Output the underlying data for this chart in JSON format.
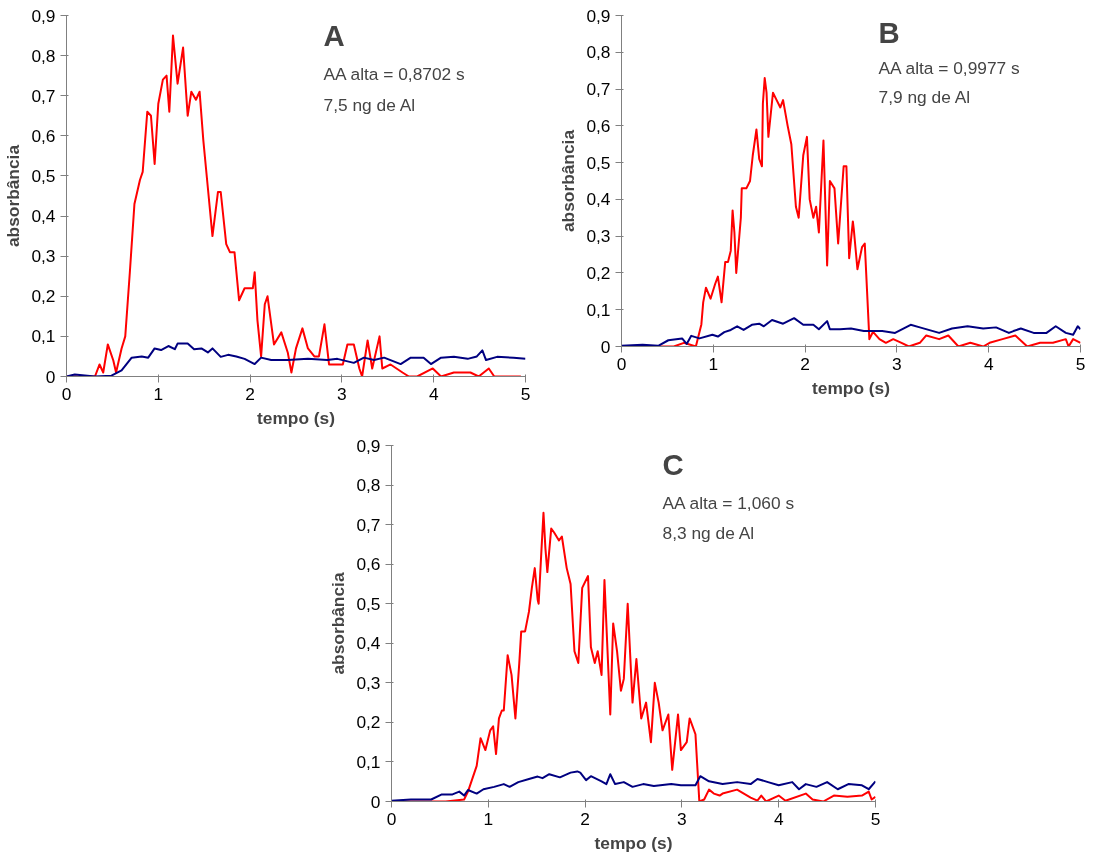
{
  "chart_data": [
    {
      "type": "line",
      "title": "A",
      "annotations": [
        "AA alta = 0,8702 s",
        "7,5 ng de Al"
      ],
      "xlabel": "tempo (s)",
      "ylabel": "absorbância",
      "xlim": [
        0,
        5
      ],
      "xticks": [
        0,
        1,
        2,
        3,
        4,
        5
      ],
      "ylim": [
        0,
        0.9
      ],
      "yticks": [
        {
          "value": 0,
          "label": "0"
        },
        {
          "value": 0.1,
          "label": "0,1"
        },
        {
          "value": 0.2,
          "label": "0,2"
        },
        {
          "value": 0.3,
          "label": "0,3"
        },
        {
          "value": 0.4,
          "label": "0,4"
        },
        {
          "value": 0.5,
          "label": "0,5"
        },
        {
          "value": 0.6,
          "label": "0,6"
        },
        {
          "value": 0.7,
          "label": "0,7"
        },
        {
          "value": 0.8,
          "label": "0,8"
        },
        {
          "value": 0.9,
          "label": "0,9"
        }
      ],
      "grid": false,
      "marker": "none",
      "line_style": "solid",
      "series": [
        {
          "color": "#ff0000",
          "x": [
            0,
            0.31,
            0.36,
            0.4,
            0.45,
            0.51,
            0.54,
            0.6,
            0.64,
            0.69,
            0.74,
            0.8,
            0.83,
            0.88,
            0.92,
            0.96,
            1.0,
            1.05,
            1.09,
            1.12,
            1.16,
            1.21,
            1.27,
            1.32,
            1.36,
            1.41,
            1.45,
            1.49,
            1.54,
            1.59,
            1.65,
            1.68,
            1.74,
            1.78,
            1.83,
            1.88,
            1.94,
            2.03,
            2.05,
            2.08,
            2.12,
            2.16,
            2.19,
            2.26,
            2.34,
            2.41,
            2.45,
            2.5,
            2.57,
            2.63,
            2.7,
            2.75,
            2.81,
            2.86,
            2.95,
            3.01,
            3.06,
            3.13,
            3.19,
            3.22,
            3.28,
            3.33,
            3.41,
            3.44,
            3.53,
            3.66,
            3.73,
            3.82,
            3.99,
            4.08,
            4.22,
            4.4,
            4.49,
            4.6,
            4.66,
            4.8,
            4.95
          ],
          "values": [
            0,
            0,
            0.03,
            0.01,
            0.08,
            0.04,
            0.01,
            0.07,
            0.1,
            0.26,
            0.43,
            0.49,
            0.51,
            0.66,
            0.65,
            0.53,
            0.68,
            0.74,
            0.75,
            0.66,
            0.85,
            0.73,
            0.82,
            0.65,
            0.71,
            0.69,
            0.71,
            0.59,
            0.47,
            0.35,
            0.46,
            0.46,
            0.33,
            0.31,
            0.31,
            0.19,
            0.22,
            0.22,
            0.26,
            0.14,
            0.05,
            0.18,
            0.2,
            0.08,
            0.11,
            0.06,
            0.01,
            0.07,
            0.12,
            0.07,
            0.05,
            0.05,
            0.13,
            0.03,
            0.03,
            0.03,
            0.08,
            0.08,
            0.02,
            0,
            0.09,
            0.02,
            0.1,
            0.02,
            0.03,
            0.01,
            0,
            0,
            0.02,
            0,
            0.01,
            0.01,
            0,
            0.02,
            0,
            0,
            0
          ]
        },
        {
          "color": "#000080",
          "x": [
            0,
            0.09,
            0.31,
            0.49,
            0.6,
            0.71,
            0.82,
            0.89,
            0.96,
            1.03,
            1.11,
            1.18,
            1.21,
            1.32,
            1.39,
            1.47,
            1.54,
            1.59,
            1.68,
            1.76,
            1.85,
            1.94,
            2.05,
            2.12,
            2.23,
            2.41,
            2.63,
            2.84,
            2.95,
            3.13,
            3.24,
            3.35,
            3.46,
            3.64,
            3.75,
            3.89,
            3.97,
            4.08,
            4.22,
            4.37,
            4.47,
            4.53,
            4.57,
            4.69,
            4.87,
            5.0
          ],
          "values": [
            0,
            0.005,
            0,
            0.002,
            0.015,
            0.047,
            0.05,
            0.047,
            0.07,
            0.066,
            0.076,
            0.068,
            0.082,
            0.082,
            0.068,
            0.07,
            0.06,
            0.07,
            0.049,
            0.054,
            0.05,
            0.044,
            0.031,
            0.047,
            0.041,
            0.041,
            0.044,
            0.041,
            0.044,
            0.034,
            0.047,
            0.041,
            0.047,
            0.031,
            0.047,
            0.047,
            0.031,
            0.047,
            0.049,
            0.044,
            0.05,
            0.065,
            0.041,
            0.049,
            0.047,
            0.044
          ]
        }
      ]
    },
    {
      "type": "line",
      "title": "B",
      "annotations": [
        "AA alta = 0,9977 s",
        "7,9 ng de Al"
      ],
      "xlabel": "tempo (s)",
      "ylabel": "absorbância",
      "xlim": [
        0,
        5
      ],
      "xticks": [
        0,
        1,
        2,
        3,
        4,
        5
      ],
      "ylim": [
        0,
        0.9
      ],
      "yticks": [
        {
          "value": 0,
          "label": "0"
        },
        {
          "value": 0.1,
          "label": "0,1"
        },
        {
          "value": 0.2,
          "label": "0,2"
        },
        {
          "value": 0.3,
          "label": "0,3"
        },
        {
          "value": 0.4,
          "label": "0,4"
        },
        {
          "value": 0.5,
          "label": "0,5"
        },
        {
          "value": 0.6,
          "label": "0,6"
        },
        {
          "value": 0.7,
          "label": "0,7"
        },
        {
          "value": 0.8,
          "label": "0,8"
        },
        {
          "value": 0.9,
          "label": "0,9"
        }
      ],
      "grid": false,
      "marker": "none",
      "line_style": "solid",
      "series": [
        {
          "color": "#ff0000",
          "x": [
            0,
            0.57,
            0.68,
            0.81,
            0.87,
            0.89,
            0.92,
            0.97,
            1.02,
            1.05,
            1.09,
            1.13,
            1.16,
            1.19,
            1.21,
            1.23,
            1.25,
            1.3,
            1.31,
            1.36,
            1.4,
            1.43,
            1.47,
            1.5,
            1.53,
            1.54,
            1.56,
            1.58,
            1.6,
            1.65,
            1.69,
            1.73,
            1.76,
            1.81,
            1.85,
            1.9,
            1.93,
            1.98,
            2.02,
            2.05,
            2.09,
            2.12,
            2.15,
            2.2,
            2.24,
            2.27,
            2.32,
            2.36,
            2.42,
            2.45,
            2.48,
            2.52,
            2.53,
            2.57,
            2.62,
            2.65,
            2.7,
            2.74,
            2.81,
            2.88,
            2.96,
            3.05,
            3.13,
            3.25,
            3.32,
            3.46,
            3.56,
            3.67,
            3.8,
            3.94,
            4.01,
            4.15,
            4.29,
            4.42,
            4.56,
            4.7,
            4.84,
            4.87,
            4.92,
            5.0
          ],
          "values": [
            0,
            0,
            0.01,
            0,
            0.06,
            0.12,
            0.16,
            0.13,
            0.17,
            0.19,
            0.12,
            0.23,
            0.23,
            0.26,
            0.37,
            0.31,
            0.2,
            0.35,
            0.43,
            0.43,
            0.45,
            0.52,
            0.59,
            0.51,
            0.49,
            0.66,
            0.73,
            0.69,
            0.57,
            0.69,
            0.67,
            0.65,
            0.67,
            0.6,
            0.55,
            0.38,
            0.35,
            0.52,
            0.57,
            0.4,
            0.35,
            0.38,
            0.31,
            0.56,
            0.22,
            0.45,
            0.43,
            0.28,
            0.49,
            0.49,
            0.24,
            0.34,
            0.32,
            0.21,
            0.27,
            0.28,
            0.02,
            0.04,
            0.02,
            0.01,
            0.02,
            0.01,
            0,
            0.01,
            0.03,
            0.02,
            0.03,
            0,
            0.01,
            0,
            0.01,
            0.02,
            0.03,
            0,
            0.01,
            0.01,
            0.02,
            0,
            0.02,
            0.01
          ]
        },
        {
          "color": "#000080",
          "x": [
            0,
            0.23,
            0.4,
            0.51,
            0.66,
            0.71,
            0.76,
            0.85,
            0.99,
            1.05,
            1.12,
            1.19,
            1.26,
            1.33,
            1.42,
            1.5,
            1.55,
            1.64,
            1.76,
            1.88,
            1.98,
            2.09,
            2.15,
            2.24,
            2.27,
            2.38,
            2.5,
            2.64,
            2.74,
            2.84,
            2.98,
            3.15,
            3.25,
            3.46,
            3.6,
            3.77,
            3.94,
            4.08,
            4.22,
            4.27,
            4.35,
            4.49,
            4.63,
            4.73,
            4.84,
            4.92,
            4.97,
            5.0
          ],
          "values": [
            0.002,
            0.005,
            0.002,
            0.017,
            0.022,
            0.007,
            0.029,
            0.022,
            0.032,
            0.027,
            0.039,
            0.045,
            0.055,
            0.045,
            0.059,
            0.062,
            0.055,
            0.072,
            0.062,
            0.077,
            0.059,
            0.059,
            0.047,
            0.069,
            0.047,
            0.047,
            0.049,
            0.042,
            0.042,
            0.042,
            0.037,
            0.059,
            0.052,
            0.037,
            0.049,
            0.055,
            0.049,
            0.052,
            0.037,
            0.042,
            0.049,
            0.037,
            0.037,
            0.055,
            0.037,
            0.032,
            0.055,
            0.047
          ]
        }
      ]
    },
    {
      "type": "line",
      "title": "C",
      "annotations": [
        "AA alta = 1,060 s",
        "8,3 ng de Al"
      ],
      "xlabel": "tempo (s)",
      "ylabel": "absorbância",
      "xlim": [
        0,
        5
      ],
      "xticks": [
        0,
        1,
        2,
        3,
        4,
        5
      ],
      "ylim": [
        0,
        0.9
      ],
      "yticks": [
        {
          "value": 0,
          "label": "0"
        },
        {
          "value": 0.1,
          "label": "0,1"
        },
        {
          "value": 0.2,
          "label": "0,2"
        },
        {
          "value": 0.3,
          "label": "0,3"
        },
        {
          "value": 0.4,
          "label": "0,4"
        },
        {
          "value": 0.5,
          "label": "0,5"
        },
        {
          "value": 0.6,
          "label": "0,6"
        },
        {
          "value": 0.7,
          "label": "0,7"
        },
        {
          "value": 0.8,
          "label": "0,8"
        },
        {
          "value": 0.9,
          "label": "0,9"
        }
      ],
      "grid": false,
      "marker": "none",
      "line_style": "solid",
      "series": [
        {
          "color": "#ff0000",
          "x": [
            0,
            0.56,
            0.75,
            0.79,
            0.88,
            0.92,
            0.97,
            1.02,
            1.05,
            1.08,
            1.11,
            1.14,
            1.16,
            1.2,
            1.24,
            1.28,
            1.32,
            1.34,
            1.38,
            1.42,
            1.45,
            1.48,
            1.51,
            1.52,
            1.55,
            1.57,
            1.59,
            1.61,
            1.65,
            1.68,
            1.73,
            1.76,
            1.81,
            1.85,
            1.89,
            1.93,
            1.97,
            2.03,
            2.06,
            2.1,
            2.13,
            2.17,
            2.2,
            2.26,
            2.29,
            2.33,
            2.37,
            2.4,
            2.44,
            2.49,
            2.53,
            2.58,
            2.63,
            2.68,
            2.72,
            2.76,
            2.8,
            2.86,
            2.9,
            2.96,
            2.99,
            3.05,
            3.08,
            3.14,
            3.18,
            3.23,
            3.28,
            3.33,
            3.39,
            3.42,
            3.57,
            3.71,
            3.78,
            3.82,
            3.87,
            4.0,
            4.07,
            4.28,
            4.35,
            4.46,
            4.57,
            4.71,
            4.86,
            4.93,
            4.96,
            5.0
          ],
          "values": [
            0,
            0,
            0.005,
            0.025,
            0.09,
            0.16,
            0.13,
            0.18,
            0.19,
            0.12,
            0.21,
            0.23,
            0.23,
            0.37,
            0.32,
            0.21,
            0.35,
            0.43,
            0.43,
            0.48,
            0.54,
            0.59,
            0.51,
            0.5,
            0.64,
            0.73,
            0.64,
            0.58,
            0.69,
            0.68,
            0.66,
            0.67,
            0.59,
            0.55,
            0.38,
            0.35,
            0.54,
            0.57,
            0.39,
            0.35,
            0.38,
            0.32,
            0.56,
            0.22,
            0.45,
            0.38,
            0.28,
            0.31,
            0.5,
            0.25,
            0.36,
            0.21,
            0.25,
            0.15,
            0.3,
            0.25,
            0.18,
            0.22,
            0.08,
            0.22,
            0.13,
            0.15,
            0.21,
            0.17,
            0,
            0.005,
            0.03,
            0.02,
            0.015,
            0.02,
            0.03,
            0.01,
            0.002,
            0.015,
            0,
            0.015,
            0.002,
            0.02,
            0.005,
            0,
            0.015,
            0.012,
            0.015,
            0.025,
            0.005,
            0.012
          ]
        },
        {
          "color": "#000080",
          "x": [
            0,
            0.2,
            0.41,
            0.52,
            0.63,
            0.7,
            0.75,
            0.79,
            0.88,
            0.95,
            1.06,
            1.16,
            1.22,
            1.31,
            1.42,
            1.51,
            1.56,
            1.63,
            1.74,
            1.85,
            1.92,
            1.95,
            2.01,
            2.06,
            2.17,
            2.22,
            2.26,
            2.31,
            2.4,
            2.49,
            2.6,
            2.71,
            2.89,
            2.99,
            3.14,
            3.19,
            3.28,
            3.42,
            3.57,
            3.71,
            3.78,
            3.89,
            4.0,
            4.14,
            4.21,
            4.28,
            4.39,
            4.5,
            4.61,
            4.72,
            4.86,
            4.93,
            5.0
          ],
          "values": [
            0.002,
            0.005,
            0.005,
            0.018,
            0.018,
            0.025,
            0.015,
            0.029,
            0.02,
            0.031,
            0.037,
            0.044,
            0.037,
            0.049,
            0.057,
            0.063,
            0.059,
            0.069,
            0.061,
            0.073,
            0.076,
            0.073,
            0.054,
            0.064,
            0.051,
            0.044,
            0.069,
            0.044,
            0.049,
            0.037,
            0.044,
            0.039,
            0.044,
            0.041,
            0.041,
            0.064,
            0.051,
            0.044,
            0.049,
            0.044,
            0.057,
            0.049,
            0.041,
            0.049,
            0.031,
            0.044,
            0.037,
            0.049,
            0.031,
            0.044,
            0.041,
            0.031,
            0.051
          ]
        }
      ]
    }
  ]
}
